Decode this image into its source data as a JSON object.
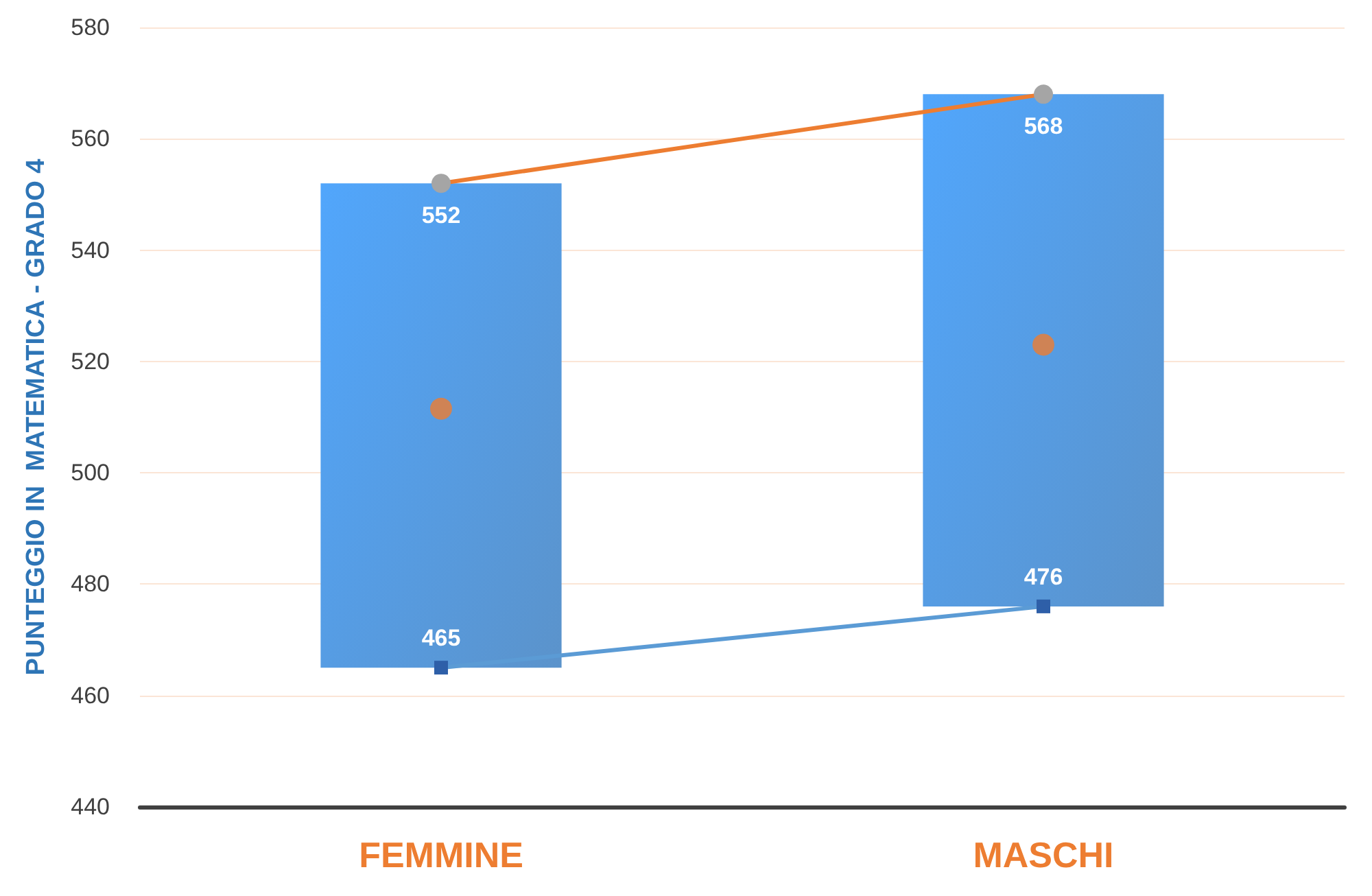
{
  "chart_data": {
    "type": "bar",
    "ylabel": "PUNTEGGIO IN  MATEMATICA - GRADO 4",
    "categories": [
      "FEMMINE",
      "MASCHI"
    ],
    "ylim": [
      440,
      580
    ],
    "yticks": [
      440,
      460,
      480,
      500,
      520,
      540,
      560,
      580
    ],
    "grid": "y",
    "series": [
      {
        "color": "#3f80c2",
        "base": [
          465,
          476
        ],
        "values": [
          87,
          92
        ]
      },
      {
        "type": "line",
        "color": "#ed7d31",
        "marker": "circle",
        "values": [
          552,
          568
        ],
        "value_labels": [
          "552",
          "568"
        ]
      },
      {
        "type": "line",
        "color": "#5b9bd5",
        "marker": "square",
        "values": [
          465,
          476
        ],
        "value_labels": [
          "465",
          "476"
        ]
      },
      {
        "type": "scatter",
        "color": "#ed7d31",
        "marker": "circle",
        "x": [
          "FEMMINE",
          "MASCHI"
        ],
        "values": [
          511.5,
          523
        ]
      }
    ]
  }
}
